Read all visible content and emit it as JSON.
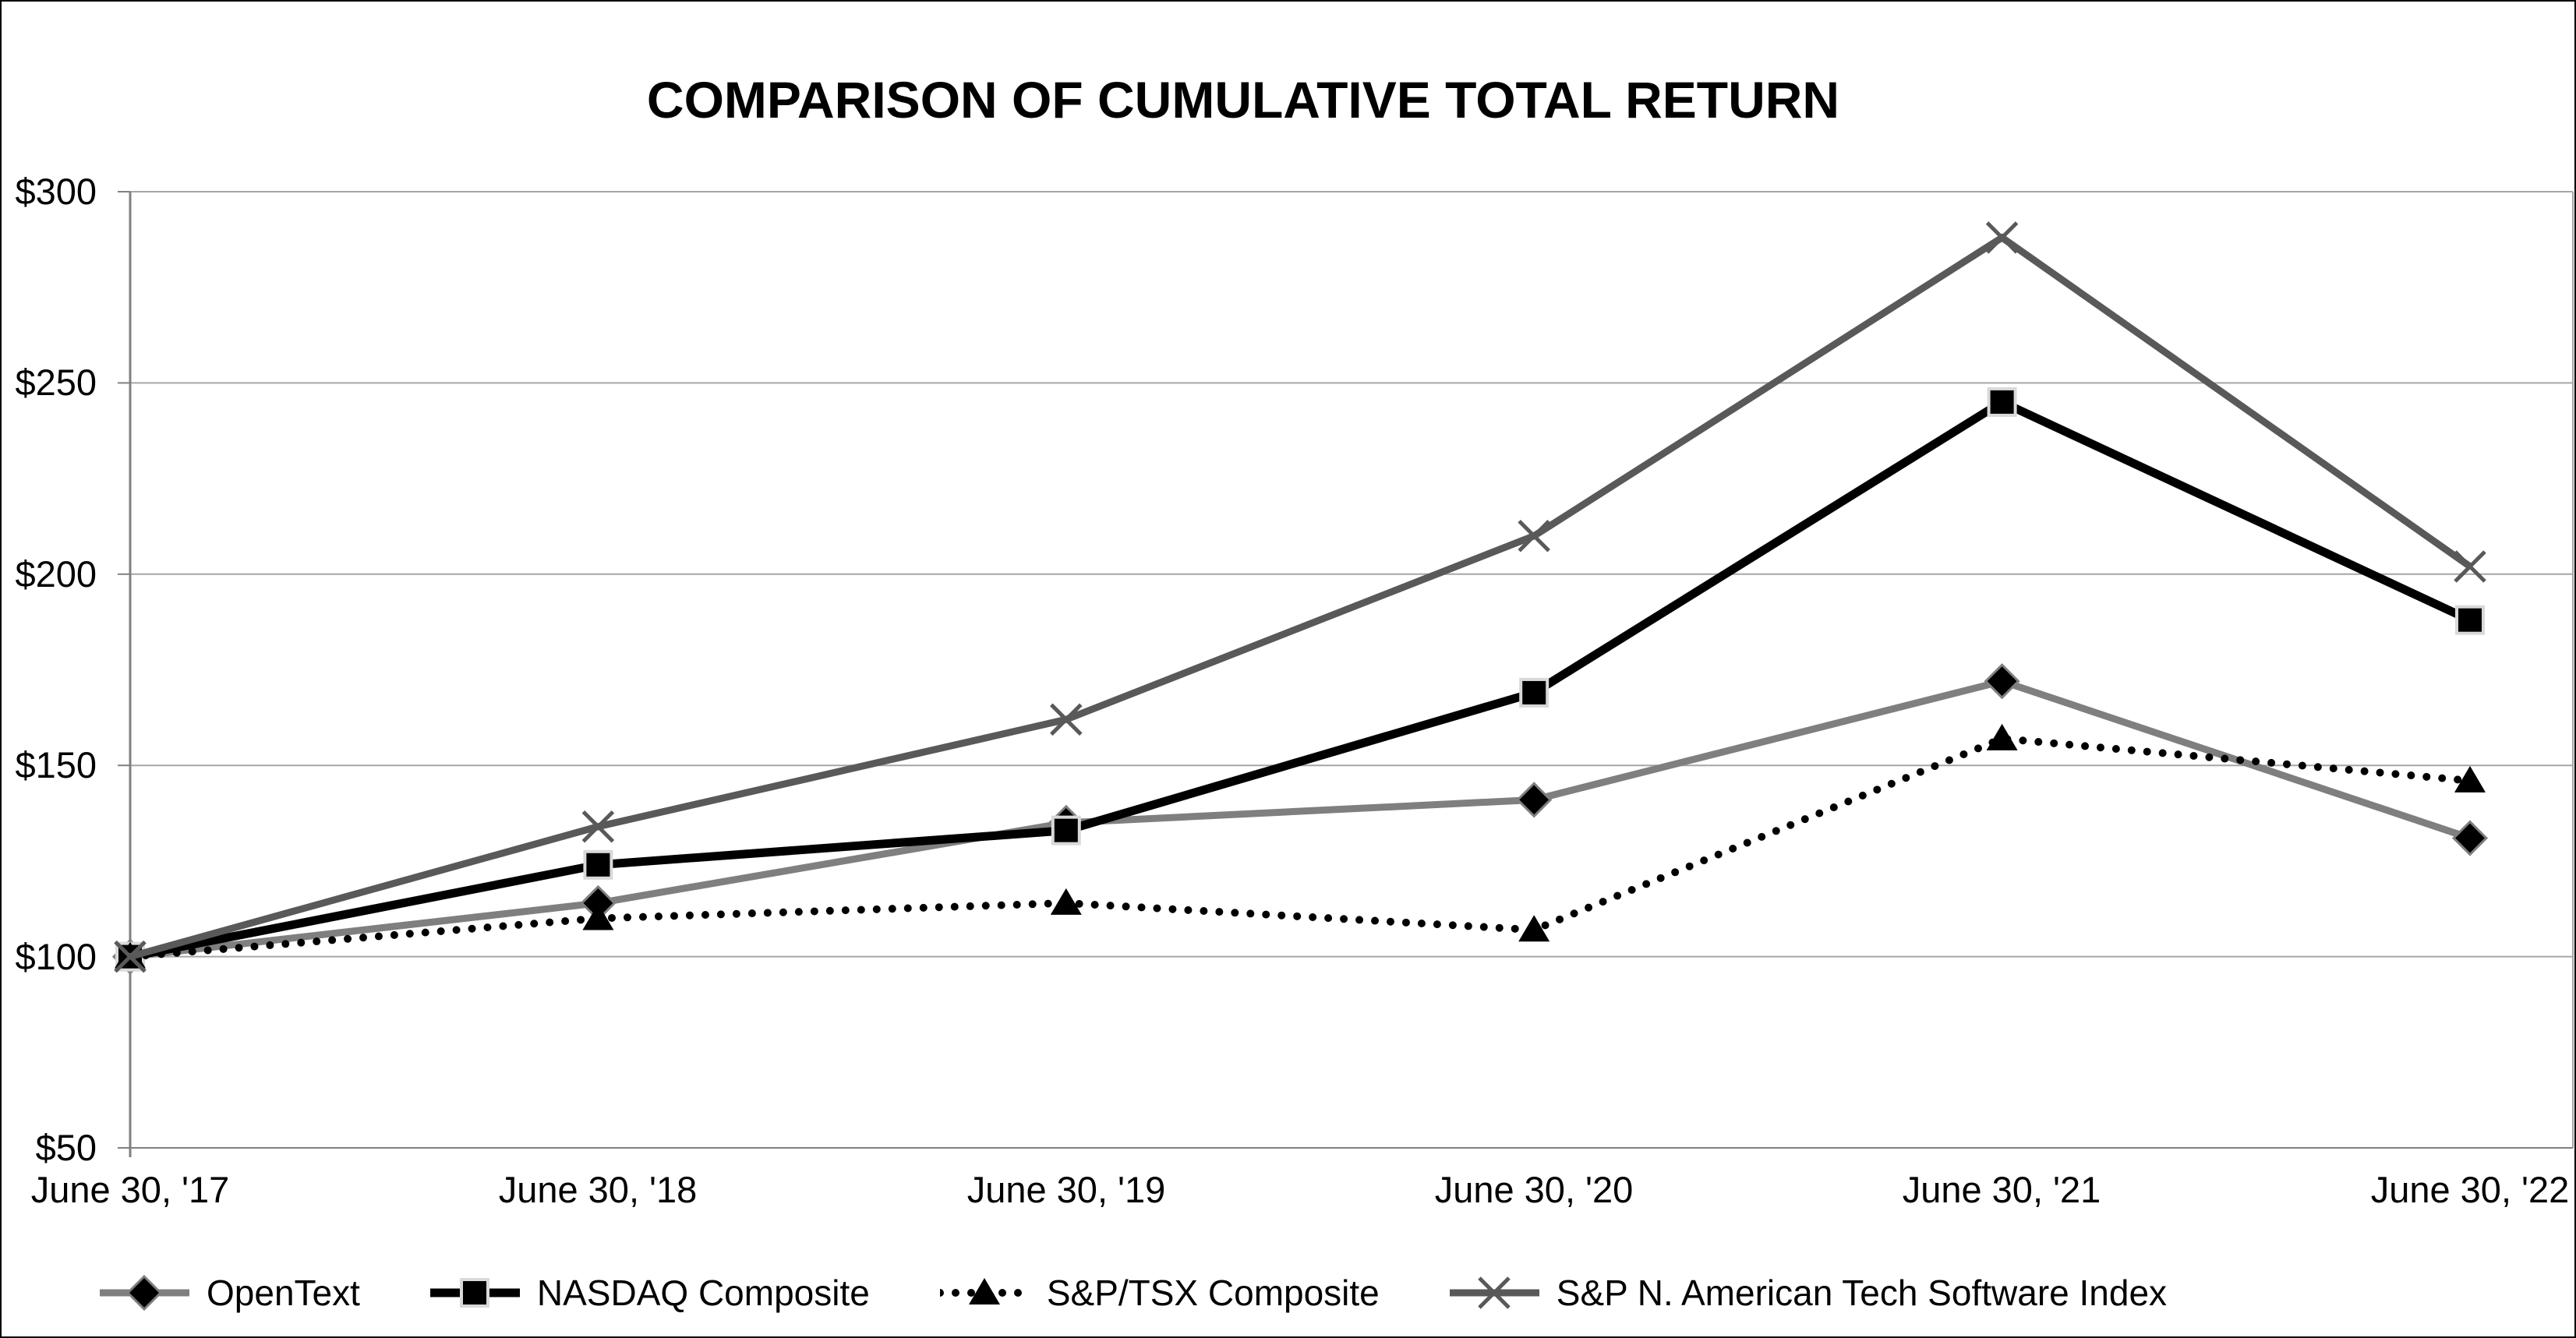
{
  "title": "COMPARISON OF CUMULATIVE TOTAL RETURN",
  "chart_data": {
    "type": "line",
    "title": "COMPARISON OF CUMULATIVE TOTAL RETURN",
    "categories": [
      "June 30, '17",
      "June 30, '18",
      "June 30, '19",
      "June 30, '20",
      "June 30, '21",
      "June 30, '22"
    ],
    "series": [
      {
        "name": "OpenText",
        "values": [
          100,
          114,
          135,
          141,
          172,
          131
        ],
        "color": "#7F7F7F",
        "line_width": 9,
        "line_style": "solid",
        "marker": "diamond",
        "marker_color": "#000000",
        "marker_outline": "#7F7F7F"
      },
      {
        "name": "NASDAQ Composite",
        "values": [
          100,
          124,
          133,
          169,
          245,
          188
        ],
        "color": "#000000",
        "line_width": 11,
        "line_style": "solid",
        "marker": "square",
        "marker_color": "#000000",
        "marker_outline": "#D9D9D9"
      },
      {
        "name": "S&P/TSX Composite",
        "values": [
          100,
          110,
          114,
          107,
          157,
          146
        ],
        "color": "#000000",
        "line_width": 10,
        "line_style": "dotted",
        "marker": "triangle",
        "marker_color": "#000000",
        "marker_outline": "none"
      },
      {
        "name": "S&P N. American Tech Software Index",
        "values": [
          100,
          134,
          162,
          210,
          288,
          202
        ],
        "color": "#595959",
        "line_width": 9,
        "line_style": "solid",
        "marker": "x",
        "marker_color": "#595959",
        "marker_outline": "none"
      }
    ],
    "yticks": [
      {
        "label": "$300",
        "value": 300
      },
      {
        "label": "$250",
        "value": 250
      },
      {
        "label": "$200",
        "value": 200
      },
      {
        "label": "$150",
        "value": 150
      },
      {
        "label": "$100",
        "value": 100
      },
      {
        "label": "$50",
        "value": 50
      }
    ],
    "ylim": [
      50,
      300
    ],
    "xlabel": "",
    "ylabel": "",
    "grid": true,
    "legend_position": "bottom",
    "colors": {
      "background": "#FFFFFF",
      "border": "#000000",
      "gridline": "#A6A6A6",
      "axis": "#808080",
      "text": "#000000"
    }
  }
}
